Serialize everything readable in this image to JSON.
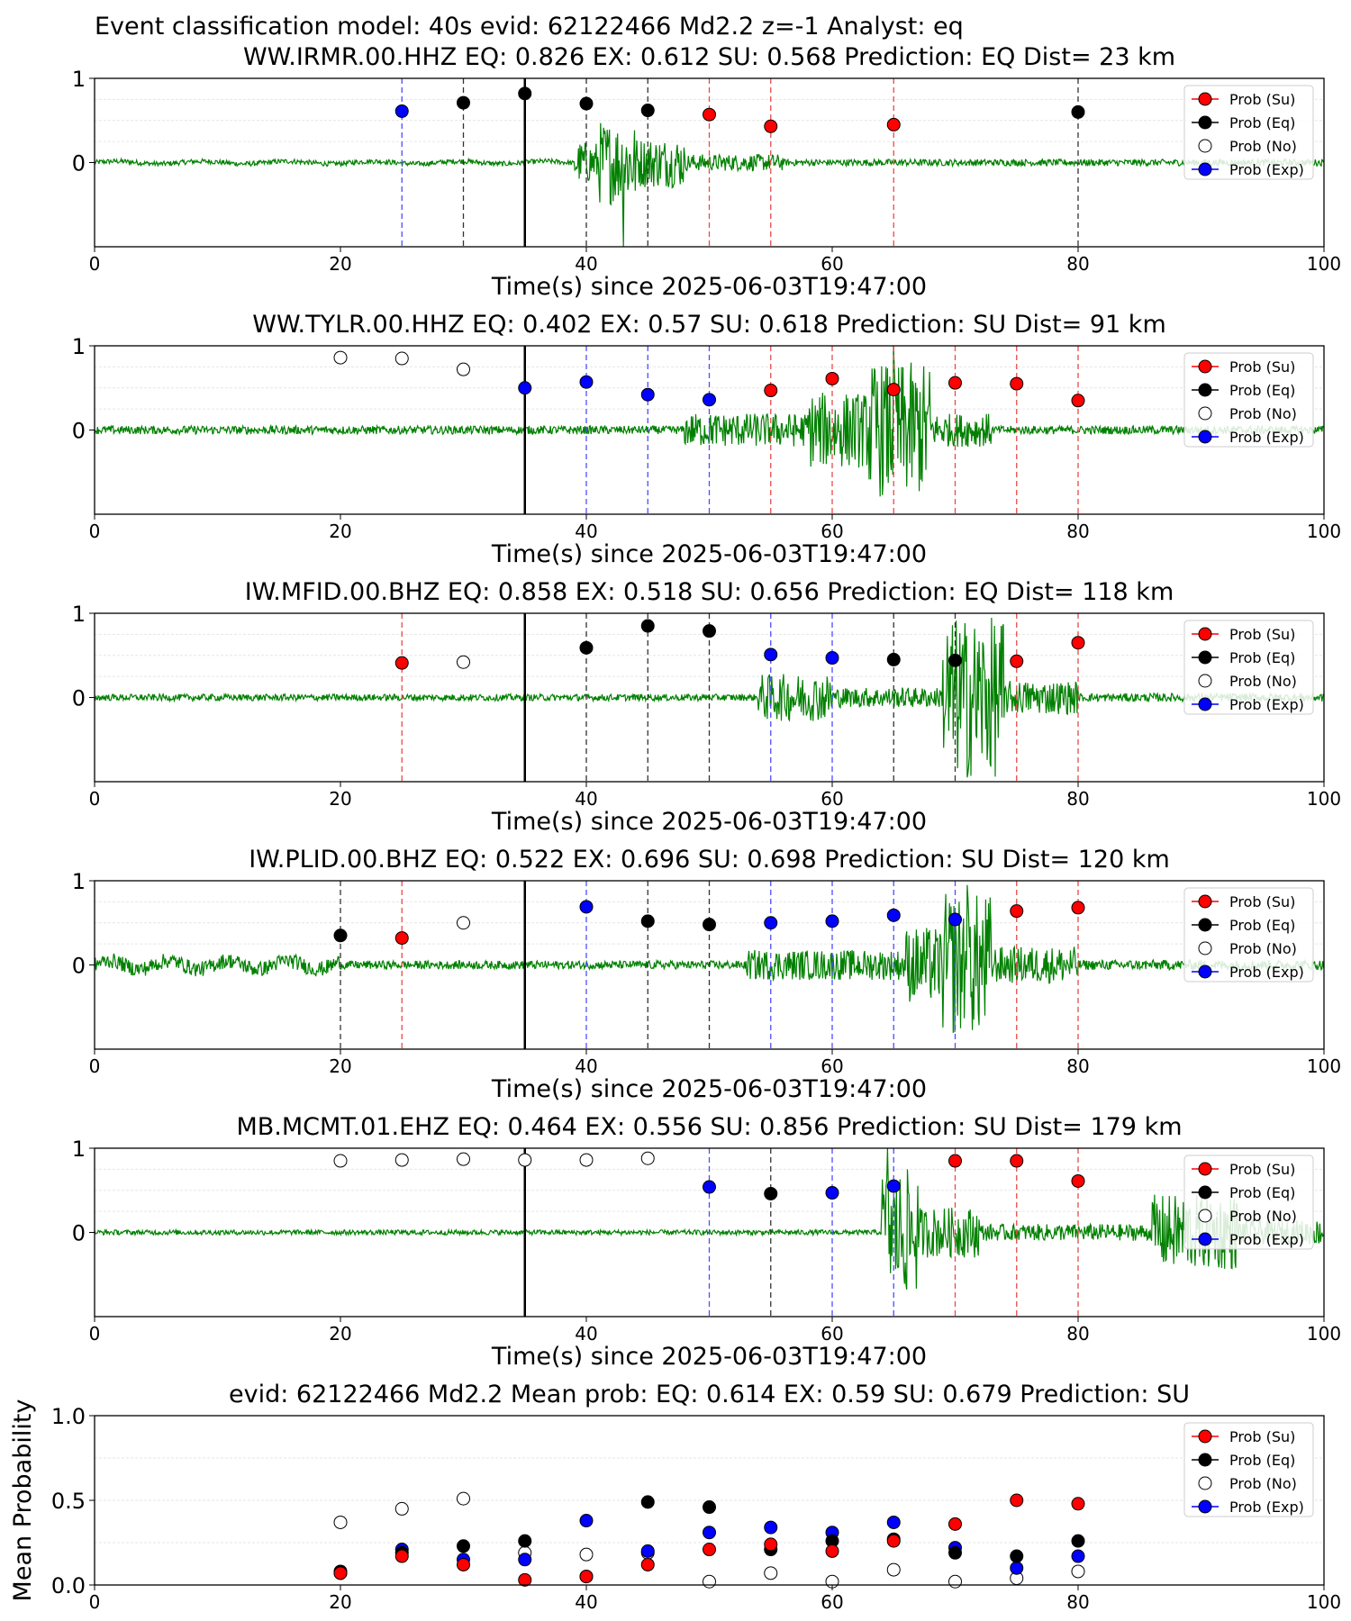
{
  "figure": {
    "suptitle": "Event classification model: 40s evid: 62122466 Md2.2 z=-1 Analyst: eq",
    "xlabel": "Time(s) since 2025-06-03T19:47:00"
  },
  "colors": {
    "su": "#ff0000",
    "eq": "#000000",
    "no": "#ffffff",
    "exp": "#0000ff",
    "waveform": "#008000",
    "su_line": "#e84a4a",
    "eq_line": "#333333",
    "exp_line": "#4d4dff"
  },
  "legend": [
    "Prob (Su)",
    "Prob (Eq)",
    "Prob (No)",
    "Prob (Exp)"
  ],
  "chart_data": [
    {
      "type": "scatter",
      "title": "WW.IRMR.00.HHZ   EQ: 0.826  EX: 0.612  SU: 0.568   Prediction: EQ    Dist= 23 km",
      "xlabel": "Time(s) since 2025-06-03T19:47:00",
      "xlim": [
        0,
        100
      ],
      "ylim": [
        -1,
        1
      ],
      "xticks": [
        "0",
        "20",
        "40",
        "60",
        "80",
        "100"
      ],
      "yticks": [
        "0",
        "1"
      ],
      "reference_line_x": 35,
      "waveform": {
        "segments": [
          [
            0,
            39,
            0.03
          ],
          [
            39,
            41,
            0.25
          ],
          [
            41,
            44,
            0.5
          ],
          [
            44,
            48,
            0.3
          ],
          [
            48,
            56,
            0.1
          ],
          [
            56,
            100,
            0.04
          ]
        ],
        "spike": [
          43,
          -1.0
        ]
      },
      "points": [
        {
          "x": 25,
          "y": 0.61,
          "class": "exp"
        },
        {
          "x": 30,
          "y": 0.71,
          "class": "eq"
        },
        {
          "x": 35,
          "y": 0.82,
          "class": "eq"
        },
        {
          "x": 40,
          "y": 0.7,
          "class": "eq"
        },
        {
          "x": 45,
          "y": 0.62,
          "class": "eq"
        },
        {
          "x": 50,
          "y": 0.57,
          "class": "su"
        },
        {
          "x": 55,
          "y": 0.43,
          "class": "su"
        },
        {
          "x": 65,
          "y": 0.45,
          "class": "su"
        },
        {
          "x": 80,
          "y": 0.6,
          "class": "eq"
        }
      ]
    },
    {
      "type": "scatter",
      "title": "WW.TYLR.00.HHZ   EQ: 0.402  EX: 0.57  SU: 0.618   Prediction: SU    Dist= 91 km",
      "xlabel": "Time(s) since 2025-06-03T19:47:00",
      "xlim": [
        0,
        100
      ],
      "ylim": [
        -1,
        1
      ],
      "xticks": [
        "0",
        "20",
        "40",
        "60",
        "80",
        "100"
      ],
      "yticks": [
        "0",
        "1"
      ],
      "reference_line_x": 35,
      "waveform": {
        "segments": [
          [
            0,
            48,
            0.05
          ],
          [
            48,
            58,
            0.2
          ],
          [
            58,
            63,
            0.45
          ],
          [
            63,
            68,
            0.8
          ],
          [
            68,
            73,
            0.2
          ],
          [
            73,
            100,
            0.05
          ]
        ],
        "spike": [
          65,
          1.0
        ]
      },
      "points": [
        {
          "x": 20,
          "y": 0.86,
          "class": "no"
        },
        {
          "x": 25,
          "y": 0.85,
          "class": "no"
        },
        {
          "x": 30,
          "y": 0.72,
          "class": "no"
        },
        {
          "x": 35,
          "y": 0.5,
          "class": "exp"
        },
        {
          "x": 40,
          "y": 0.57,
          "class": "exp"
        },
        {
          "x": 45,
          "y": 0.42,
          "class": "exp"
        },
        {
          "x": 50,
          "y": 0.36,
          "class": "exp"
        },
        {
          "x": 55,
          "y": 0.47,
          "class": "su"
        },
        {
          "x": 60,
          "y": 0.61,
          "class": "su"
        },
        {
          "x": 65,
          "y": 0.48,
          "class": "su"
        },
        {
          "x": 70,
          "y": 0.56,
          "class": "su"
        },
        {
          "x": 75,
          "y": 0.55,
          "class": "su"
        },
        {
          "x": 80,
          "y": 0.35,
          "class": "su"
        }
      ]
    },
    {
      "type": "scatter",
      "title": "IW.MFID.00.BHZ   EQ: 0.858  EX: 0.518  SU: 0.656   Prediction: EQ    Dist= 118 km",
      "xlabel": "Time(s) since 2025-06-03T19:47:00",
      "xlim": [
        0,
        100
      ],
      "ylim": [
        -1,
        1
      ],
      "xticks": [
        "0",
        "20",
        "40",
        "60",
        "80",
        "100"
      ],
      "yticks": [
        "0",
        "1"
      ],
      "reference_line_x": 35,
      "waveform": {
        "segments": [
          [
            0,
            54,
            0.04
          ],
          [
            54,
            60,
            0.28
          ],
          [
            60,
            69,
            0.12
          ],
          [
            69,
            74,
            0.95
          ],
          [
            74,
            80,
            0.2
          ],
          [
            80,
            100,
            0.05
          ]
        ],
        "spike": [
          71,
          -0.95
        ]
      },
      "points": [
        {
          "x": 25,
          "y": 0.41,
          "class": "su"
        },
        {
          "x": 30,
          "y": 0.42,
          "class": "no"
        },
        {
          "x": 40,
          "y": 0.59,
          "class": "eq"
        },
        {
          "x": 45,
          "y": 0.85,
          "class": "eq"
        },
        {
          "x": 50,
          "y": 0.79,
          "class": "eq"
        },
        {
          "x": 55,
          "y": 0.51,
          "class": "exp"
        },
        {
          "x": 60,
          "y": 0.47,
          "class": "exp"
        },
        {
          "x": 65,
          "y": 0.45,
          "class": "eq"
        },
        {
          "x": 70,
          "y": 0.44,
          "class": "eq"
        },
        {
          "x": 75,
          "y": 0.43,
          "class": "su"
        },
        {
          "x": 80,
          "y": 0.65,
          "class": "su"
        }
      ]
    },
    {
      "type": "scatter",
      "title": "IW.PLID.00.BHZ   EQ: 0.522  EX: 0.696  SU: 0.698   Prediction: SU    Dist= 120 km",
      "xlabel": "Time(s) since 2025-06-03T19:47:00",
      "xlim": [
        0,
        100
      ],
      "ylim": [
        -1,
        1
      ],
      "xticks": [
        "0",
        "20",
        "40",
        "60",
        "80",
        "100"
      ],
      "yticks": [
        "0",
        "1"
      ],
      "reference_line_x": 35,
      "waveform": {
        "segments": [
          [
            0,
            20,
            0.09
          ],
          [
            20,
            53,
            0.05
          ],
          [
            53,
            66,
            0.18
          ],
          [
            66,
            69,
            0.45
          ],
          [
            69,
            73,
            0.85
          ],
          [
            73,
            80,
            0.22
          ],
          [
            80,
            100,
            0.06
          ]
        ],
        "spike": [
          71,
          0.95
        ]
      },
      "points": [
        {
          "x": 20,
          "y": 0.35,
          "class": "eq"
        },
        {
          "x": 25,
          "y": 0.32,
          "class": "su"
        },
        {
          "x": 30,
          "y": 0.5,
          "class": "no"
        },
        {
          "x": 40,
          "y": 0.69,
          "class": "exp"
        },
        {
          "x": 45,
          "y": 0.52,
          "class": "eq"
        },
        {
          "x": 50,
          "y": 0.48,
          "class": "eq"
        },
        {
          "x": 55,
          "y": 0.5,
          "class": "exp"
        },
        {
          "x": 60,
          "y": 0.52,
          "class": "exp"
        },
        {
          "x": 65,
          "y": 0.59,
          "class": "exp"
        },
        {
          "x": 70,
          "y": 0.54,
          "class": "exp"
        },
        {
          "x": 75,
          "y": 0.64,
          "class": "su"
        },
        {
          "x": 80,
          "y": 0.68,
          "class": "su"
        }
      ]
    },
    {
      "type": "scatter",
      "title": "MB.MCMT.01.EHZ   EQ: 0.464  EX: 0.556  SU: 0.856   Prediction: SU    Dist= 179 km",
      "xlabel": "Time(s) since 2025-06-03T19:47:00",
      "xlim": [
        0,
        100
      ],
      "ylim": [
        -1,
        1
      ],
      "xticks": [
        "0",
        "20",
        "40",
        "60",
        "80",
        "100"
      ],
      "yticks": [
        "0",
        "1"
      ],
      "reference_line_x": 35,
      "waveform": {
        "segments": [
          [
            0,
            64,
            0.03
          ],
          [
            64,
            67,
            0.75
          ],
          [
            67,
            72,
            0.3
          ],
          [
            72,
            86,
            0.1
          ],
          [
            86,
            93,
            0.45
          ],
          [
            93,
            100,
            0.15
          ]
        ],
        "spike": [
          64.5,
          1.0
        ]
      },
      "points": [
        {
          "x": 20,
          "y": 0.85,
          "class": "no"
        },
        {
          "x": 25,
          "y": 0.86,
          "class": "no"
        },
        {
          "x": 30,
          "y": 0.87,
          "class": "no"
        },
        {
          "x": 35,
          "y": 0.86,
          "class": "no"
        },
        {
          "x": 40,
          "y": 0.86,
          "class": "no"
        },
        {
          "x": 45,
          "y": 0.88,
          "class": "no"
        },
        {
          "x": 50,
          "y": 0.54,
          "class": "exp"
        },
        {
          "x": 55,
          "y": 0.46,
          "class": "eq"
        },
        {
          "x": 60,
          "y": 0.47,
          "class": "exp"
        },
        {
          "x": 65,
          "y": 0.55,
          "class": "exp"
        },
        {
          "x": 70,
          "y": 0.85,
          "class": "su"
        },
        {
          "x": 75,
          "y": 0.85,
          "class": "su"
        },
        {
          "x": 80,
          "y": 0.61,
          "class": "su"
        }
      ]
    },
    {
      "type": "scatter",
      "title": "evid: 62122466  Md2.2   Mean prob:    EQ: 0.614  EX: 0.59  SU: 0.679   Prediction: SU",
      "ylabel": "Mean Probability",
      "xlim": [
        0,
        100
      ],
      "ylim": [
        0,
        1
      ],
      "xticks": [
        "0",
        "20",
        "40",
        "60",
        "80",
        "100"
      ],
      "yticks": [
        "0.0",
        "0.5",
        "1.0"
      ],
      "x": [
        20,
        25,
        30,
        35,
        40,
        45,
        50,
        55,
        60,
        65,
        70,
        75,
        80
      ],
      "series": [
        {
          "key": "no",
          "values": [
            0.37,
            0.45,
            0.51,
            0.19,
            0.18,
            0.19,
            0.02,
            0.07,
            0.02,
            0.09,
            0.02,
            0.04,
            0.08
          ]
        },
        {
          "key": "exp",
          "values": [
            0.07,
            0.21,
            0.15,
            0.15,
            0.38,
            0.2,
            0.31,
            0.34,
            0.31,
            0.37,
            0.22,
            0.1,
            0.17
          ]
        },
        {
          "key": "eq",
          "values": [
            0.08,
            0.19,
            0.23,
            0.26,
            0.05,
            0.49,
            0.46,
            0.21,
            0.26,
            0.27,
            0.19,
            0.17,
            0.26
          ]
        },
        {
          "key": "su",
          "values": [
            0.07,
            0.17,
            0.12,
            0.03,
            0.05,
            0.12,
            0.21,
            0.24,
            0.2,
            0.26,
            0.36,
            0.5,
            0.48
          ]
        }
      ]
    }
  ]
}
